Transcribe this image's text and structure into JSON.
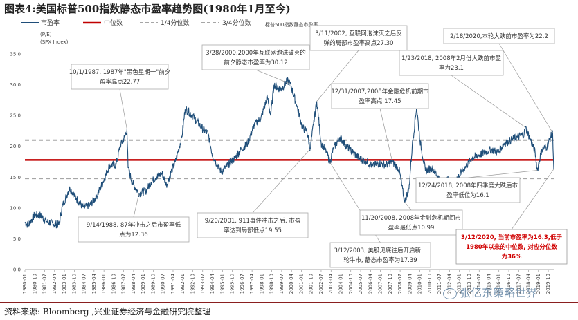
{
  "figure": {
    "title": "图表4:美国标普500指数静态市盈率趋势图(1980年1月至今)",
    "source": "资料来源: Bloomberg ,兴业证券经济与金融研究院整理",
    "watermark": "张亿东策略世界"
  },
  "legend": {
    "items": [
      "市盈率",
      "中位数",
      "1/4分位数",
      "3/4分位数"
    ],
    "unit_line1": "(P/E)",
    "unit_line2": "(SPX Index)",
    "series_note": "标普500指数静态市盈率"
  },
  "colors": {
    "pe_line": "#1f4e79",
    "median": "#c00000",
    "quartile": "#a6a6a6",
    "red_text": "#d00000",
    "rule": "#8a1f1f"
  },
  "chart_data": {
    "type": "line",
    "title": "美国标普500指数静态市盈率趋势图(1980年1月至今)",
    "ylabel": "(P/E)",
    "ylim": [
      0,
      35
    ],
    "yticks": [
      0.0,
      5.0,
      10.0,
      15.0,
      20.0,
      25.0,
      30.0,
      35.0
    ],
    "xlim": [
      "1980-01",
      "2020-03"
    ],
    "xticks": [
      "1980-01",
      "1980-10",
      "1981-07",
      "1982-04",
      "1983-01",
      "1983-10",
      "1984-07",
      "1985-04",
      "1986-01",
      "1986-10",
      "1987-07",
      "1988-04",
      "1989-01",
      "1989-10",
      "1990-07",
      "1991-04",
      "1992-01",
      "1992-10",
      "1993-07",
      "1994-04",
      "1995-01",
      "1995-10",
      "1996-07",
      "1997-04",
      "1998-01",
      "1998-10",
      "1999-07",
      "2000-04",
      "2001-01",
      "2001-10",
      "2002-07",
      "2003-04",
      "2004-01",
      "2004-10",
      "2005-07",
      "2006-04",
      "2007-01",
      "2007-10",
      "2008-07",
      "2009-04",
      "2010-01",
      "2010-10",
      "2011-07",
      "2012-04",
      "2013-01",
      "2013-10",
      "2014-07",
      "2015-04",
      "2016-01",
      "2016-10",
      "2017-07",
      "2018-04",
      "2019-01",
      "2019-10"
    ],
    "series": [
      {
        "name": "市盈率",
        "points": [
          [
            "1980-01",
            7.7
          ],
          [
            "1980-04",
            7.2
          ],
          [
            "1980-10",
            8.9
          ],
          [
            "1981-03",
            8.8
          ],
          [
            "1981-09",
            7.8
          ],
          [
            "1982-03",
            7.4
          ],
          [
            "1982-08",
            7.3
          ],
          [
            "1982-11",
            10.2
          ],
          [
            "1983-04",
            12.5
          ],
          [
            "1983-06",
            13.2
          ],
          [
            "1983-12",
            11.5
          ],
          [
            "1984-06",
            10.1
          ],
          [
            "1984-12",
            10.4
          ],
          [
            "1985-06",
            11.8
          ],
          [
            "1985-12",
            14.1
          ],
          [
            "1986-06",
            16.9
          ],
          [
            "1986-12",
            17.0
          ],
          [
            "1987-04",
            20.2
          ],
          [
            "1987-08",
            21.5
          ],
          [
            "1987-10",
            22.77
          ],
          [
            "1987-11",
            16.5
          ],
          [
            "1988-03",
            14.0
          ],
          [
            "1988-09",
            12.36
          ],
          [
            "1989-03",
            12.7
          ],
          [
            "1989-08",
            14.2
          ],
          [
            "1989-12",
            14.9
          ],
          [
            "1990-06",
            15.6
          ],
          [
            "1990-10",
            13.7
          ],
          [
            "1991-03",
            16.2
          ],
          [
            "1991-06",
            17.4
          ],
          [
            "1991-12",
            21.5
          ],
          [
            "1992-03",
            26.0
          ],
          [
            "1992-06",
            25.7
          ],
          [
            "1992-12",
            24.5
          ],
          [
            "1993-06",
            23.0
          ],
          [
            "1993-12",
            22.0
          ],
          [
            "1994-04",
            18.5
          ],
          [
            "1994-12",
            15.8
          ],
          [
            "1995-06",
            17.0
          ],
          [
            "1995-12",
            18.0
          ],
          [
            "1996-06",
            19.5
          ],
          [
            "1996-12",
            20.5
          ],
          [
            "1997-06",
            23.5
          ],
          [
            "1997-12",
            24.5
          ],
          [
            "1998-06",
            28.0
          ],
          [
            "1998-09",
            25.0
          ],
          [
            "1998-12",
            30.0
          ],
          [
            "1999-06",
            29.2
          ],
          [
            "1999-12",
            30.6
          ],
          [
            "2000-03",
            30.12
          ],
          [
            "2000-09",
            26.5
          ],
          [
            "2001-02",
            23.0
          ],
          [
            "2001-06",
            22.5
          ],
          [
            "2001-09",
            19.55
          ],
          [
            "2001-12",
            23.5
          ],
          [
            "2002-03",
            27.3
          ],
          [
            "2002-07",
            20.5
          ],
          [
            "2002-12",
            19.0
          ],
          [
            "2003-03",
            17.39
          ],
          [
            "2003-06",
            19.5
          ],
          [
            "2003-12",
            21.5
          ],
          [
            "2004-06",
            20.0
          ],
          [
            "2004-12",
            19.0
          ],
          [
            "2005-06",
            18.0
          ],
          [
            "2005-12",
            17.6
          ],
          [
            "2006-06",
            16.8
          ],
          [
            "2006-12",
            17.3
          ],
          [
            "2007-06",
            17.0
          ],
          [
            "2007-12",
            17.45
          ],
          [
            "2008-06",
            16.3
          ],
          [
            "2008-11",
            10.99
          ],
          [
            "2009-03",
            13.0
          ],
          [
            "2009-06",
            20.0
          ],
          [
            "2009-10",
            26.5
          ],
          [
            "2010-01",
            21.0
          ],
          [
            "2010-06",
            16.0
          ],
          [
            "2010-12",
            16.5
          ],
          [
            "2011-06",
            15.0
          ],
          [
            "2011-10",
            13.5
          ],
          [
            "2012-03",
            14.7
          ],
          [
            "2012-06",
            14.0
          ],
          [
            "2012-12",
            15.0
          ],
          [
            "2013-06",
            16.5
          ],
          [
            "2013-12",
            18.0
          ],
          [
            "2014-06",
            18.5
          ],
          [
            "2014-12",
            19.0
          ],
          [
            "2015-06",
            19.5
          ],
          [
            "2015-12",
            19.0
          ],
          [
            "2016-06",
            20.5
          ],
          [
            "2016-12",
            21.0
          ],
          [
            "2017-06",
            21.5
          ],
          [
            "2017-12",
            22.0
          ],
          [
            "2018-01",
            23.1
          ],
          [
            "2018-06",
            21.0
          ],
          [
            "2018-10",
            19.0
          ],
          [
            "2018-12",
            16.1
          ],
          [
            "2019-04",
            19.5
          ],
          [
            "2019-09",
            20.0
          ],
          [
            "2019-12",
            21.5
          ],
          [
            "2020-02",
            22.2
          ],
          [
            "2020-03",
            16.3
          ]
        ]
      },
      {
        "name": "中位数",
        "value": 17.8
      },
      {
        "name": "1/4分位数",
        "value": 14.8
      },
      {
        "name": "3/4分位数",
        "value": 21.0
      }
    ]
  },
  "annotations": [
    {
      "id": "a1987",
      "lines": [
        "10/1/1987, 1987年\"黑色星期一\"前夕",
        "盈率高点22.77"
      ],
      "point": [
        "1987-10",
        22.77
      ],
      "color": "dark"
    },
    {
      "id": "a1988",
      "lines": [
        "9/14/1988, 87年冲击之后市盈率低",
        "点为12.36"
      ],
      "point": [
        "1988-09",
        12.36
      ],
      "color": "dark"
    },
    {
      "id": "a2000",
      "lines": [
        "3/28/2000,2000年互联网泡沫破灭的",
        "前夕静态市盈率为30.12"
      ],
      "point": [
        "2000-03",
        30.12
      ],
      "color": "dark"
    },
    {
      "id": "a2001",
      "lines": [
        "9/20/2001, 911事件冲击之后, 市盈",
        "率达到局部低点19.55"
      ],
      "point": [
        "2001-09",
        19.55
      ],
      "color": "dark"
    },
    {
      "id": "a2002",
      "lines": [
        "3/11/2002, 互联网泡沫灭之后反",
        "弹的局部市盈率高点27.30"
      ],
      "point": [
        "2002-03",
        27.3
      ],
      "color": "dark"
    },
    {
      "id": "a2003",
      "lines": [
        "3/12/2003, 美股见底往后开启新一",
        "轮牛市, 静态市盈率为17.39"
      ],
      "point": [
        "2003-03",
        17.39
      ],
      "color": "dark"
    },
    {
      "id": "a2007",
      "lines": [
        "12/31/2007,2008年金融危机前期市",
        "盈率高点 17.45"
      ],
      "point": [
        "2007-12",
        17.45
      ],
      "color": "dark"
    },
    {
      "id": "a2008",
      "lines": [
        "11/20/2008, 2008年金融危机期间市",
        "盈率最低点10.99"
      ],
      "point": [
        "2008-11",
        10.99
      ],
      "color": "dark"
    },
    {
      "id": "a2018a",
      "lines": [
        "1/23/2018, 2008年2月份大跌前市盈",
        "率为23.1"
      ],
      "point": [
        "2018-01",
        23.1
      ],
      "color": "dark"
    },
    {
      "id": "a2018b",
      "lines": [
        "12/24/2018, 2008年四季度大跌后市",
        "盈率低位为16.1"
      ],
      "point": [
        "2018-12",
        16.1
      ],
      "color": "dark"
    },
    {
      "id": "a2020a",
      "lines": [
        "2/18/2020,本轮大跌前市盈率为22.2"
      ],
      "point": [
        "2020-02",
        22.2
      ],
      "color": "dark"
    },
    {
      "id": "a2020b",
      "lines": [
        "3/12/2020, 当前市盈率为16.3,低于",
        "1980年以来的中位数, 对应分位数",
        "为36%"
      ],
      "point": [
        "2020-03",
        16.3
      ],
      "color": "red"
    }
  ]
}
